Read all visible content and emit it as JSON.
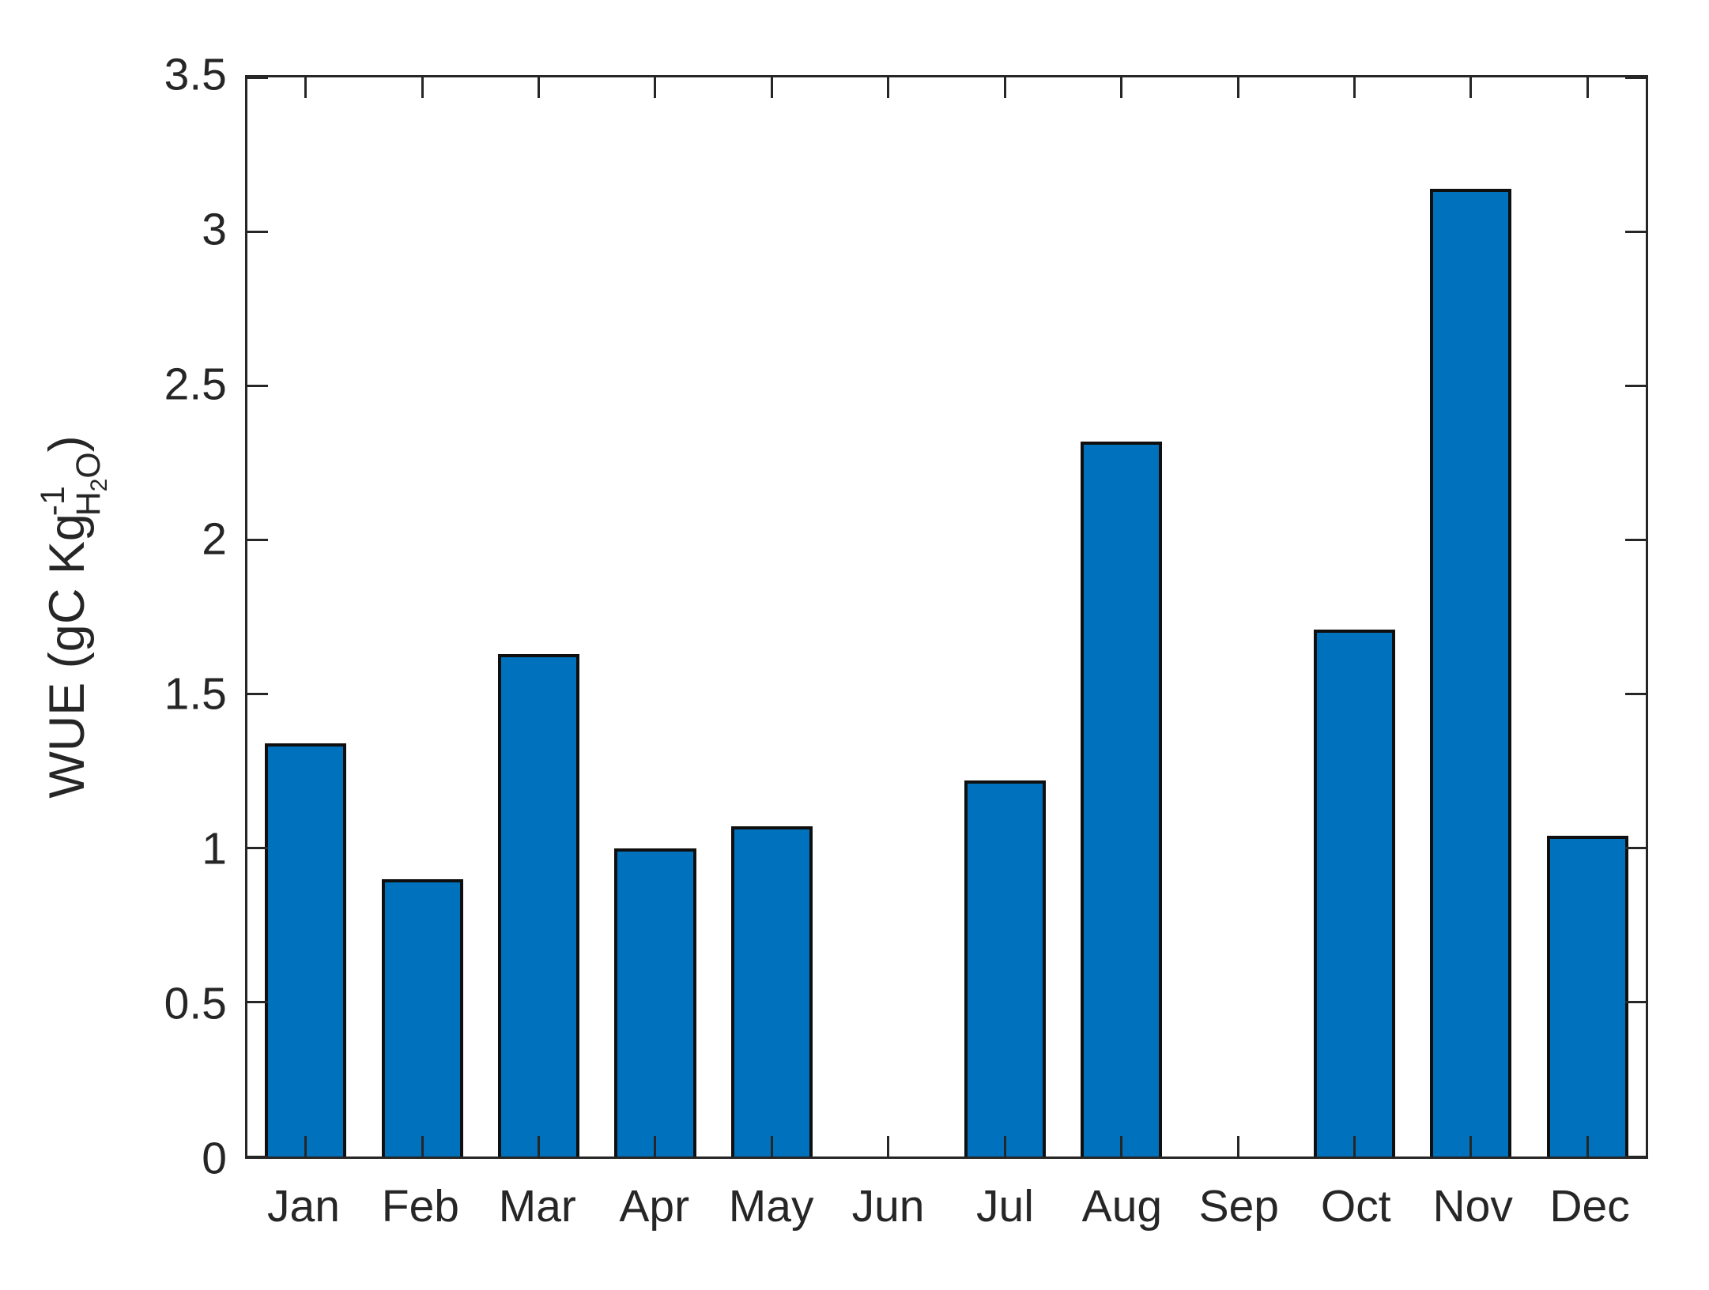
{
  "figure": {
    "background": "#ffffff",
    "axis_color": "#262626",
    "text_color": "#262626",
    "bar_fill": "#0072BD",
    "bar_edge": "#0f0f0f"
  },
  "chart_data": {
    "type": "bar",
    "title": "",
    "xlabel": "",
    "ylabel": "WUE (gC Kg^{-1}_{H2O})",
    "categories": [
      "Jan",
      "Feb",
      "Mar",
      "Apr",
      "May",
      "Jun",
      "Jul",
      "Aug",
      "Sep",
      "Oct",
      "Nov",
      "Dec"
    ],
    "values": [
      1.34,
      0.9,
      1.63,
      1.0,
      1.07,
      0,
      1.22,
      2.32,
      0,
      1.71,
      3.14,
      1.04
    ],
    "ylim": [
      0,
      3.5
    ],
    "yticks": [
      0,
      0.5,
      1,
      1.5,
      2,
      2.5,
      3,
      3.5
    ],
    "ytick_labels": [
      "0",
      "0.5",
      "1",
      "1.5",
      "2",
      "2.5",
      "3",
      "3.5"
    ],
    "grid": false,
    "legend": null,
    "bar_width_fraction": 0.7,
    "box": true,
    "tick_direction": "in"
  },
  "ylabel_parts": {
    "prefix": "WUE (gC Kg",
    "sup": "-1",
    "sub_h": "H",
    "sub_2": "2",
    "sub_o": "O",
    "suffix": ")"
  }
}
